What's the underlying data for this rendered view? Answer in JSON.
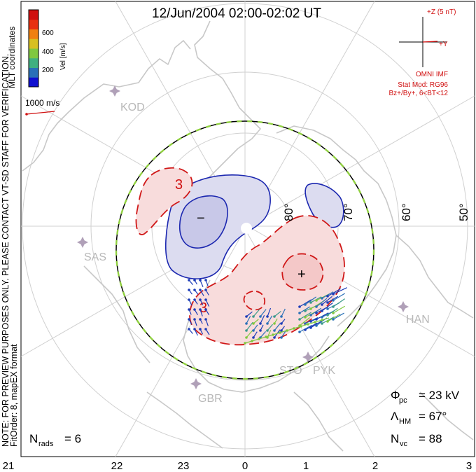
{
  "title": "12/Jun/2004 02:00-02:02 UT",
  "sidebar": {
    "coords": "MLT coordinates",
    "note_line1": "NOTE: FOR PREVIEW PURPOSES ONLY. PLEASE CONTACT VT-SD STAFF FOR VERIFICATION.",
    "note_line2": "FitOrder: 8, mapEX format"
  },
  "colorbar": {
    "label": "Vel [m/s]",
    "ticks": [
      "600",
      "400",
      "200"
    ],
    "colors": [
      "#1010d0",
      "#2a70b8",
      "#40b080",
      "#80c840",
      "#d8c020",
      "#f08010",
      "#e83010",
      "#d01010"
    ]
  },
  "scale_vector": {
    "label": "1000 m/s"
  },
  "imf": {
    "z_label": "+Z (5 nT)",
    "y_label": "+Y",
    "source": "OMNI IMF",
    "model": "Stat Mod: RG96",
    "condition": "Bz+/By+, 6<BT<12"
  },
  "stats": {
    "phi_symbol": "Φ",
    "phi_sub": "pc",
    "phi_value": "= 23 kV",
    "lambda_symbol": "Λ",
    "lambda_sub": "HM",
    "lambda_value": "= 67°",
    "nvc_symbol": "N",
    "nvc_sub": "vc",
    "nvc_value": "= 88",
    "nrads_symbol": "N",
    "nrads_sub": "rads",
    "nrads_value": "= 6"
  },
  "lat_labels": [
    "80°",
    "70°",
    "60°",
    "50°"
  ],
  "mlt_labels": [
    "21",
    "22",
    "23",
    "0",
    "1",
    "2",
    "3"
  ],
  "stations": [
    "KOD",
    "SAS",
    "GBR",
    "STO",
    "PYK",
    "HAN"
  ],
  "contour_labels": {
    "minus": "−",
    "plus": "+",
    "three_a": "3",
    "three_b": "3"
  },
  "colors": {
    "negative_fill": "#dcdcf0",
    "negative_line": "#1c28b0",
    "positive_fill": "#f8dcdc",
    "positive_line": "#d01818",
    "heppner_maynard": "#90d040",
    "text_red": "#d01010",
    "map": "#c8c8c8"
  }
}
